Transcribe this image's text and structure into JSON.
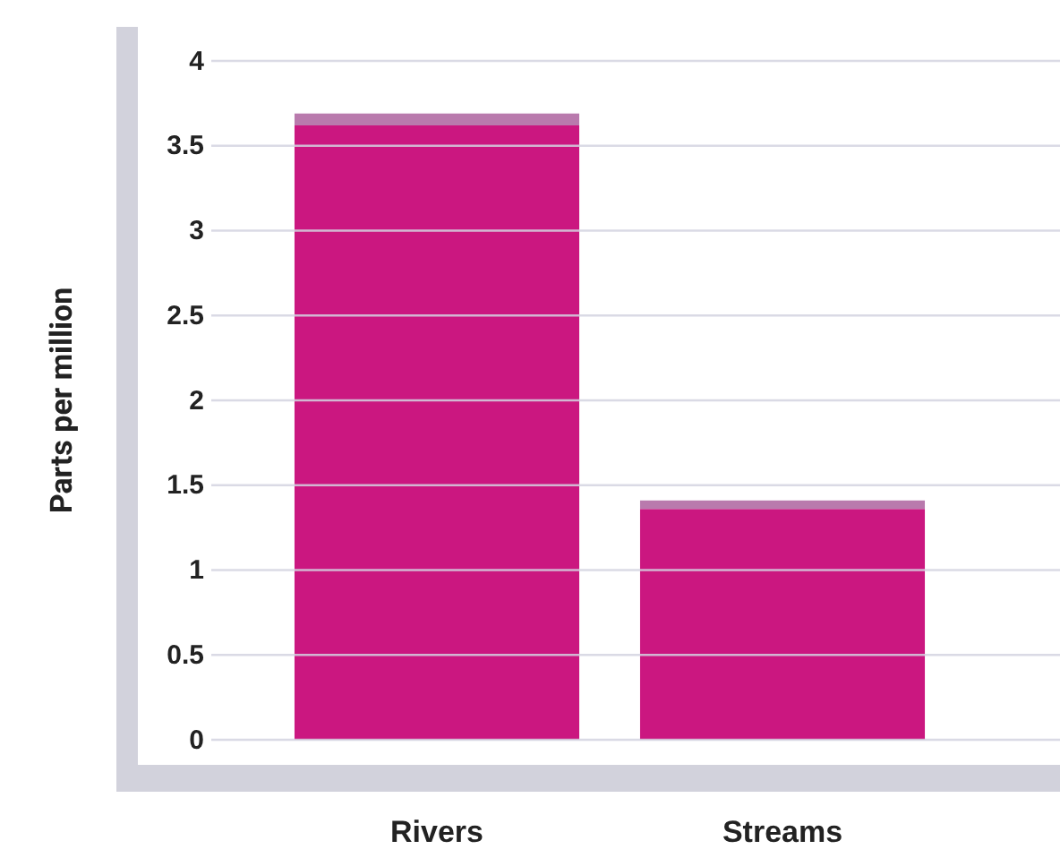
{
  "chart_data": {
    "type": "bar",
    "ylabel": "Parts per million",
    "categories": [
      "Rivers",
      "Streams"
    ],
    "stacked": true,
    "series": [
      {
        "color": "#cb1780",
        "values": [
          3.62,
          1.36
        ]
      },
      {
        "color": "#b97aad",
        "values": [
          0.07,
          0.05
        ]
      }
    ],
    "ylim": [
      0,
      4
    ],
    "yticks": [
      0,
      0.5,
      1,
      1.5,
      2,
      2.5,
      3,
      3.5,
      4
    ],
    "grid": "y"
  }
}
